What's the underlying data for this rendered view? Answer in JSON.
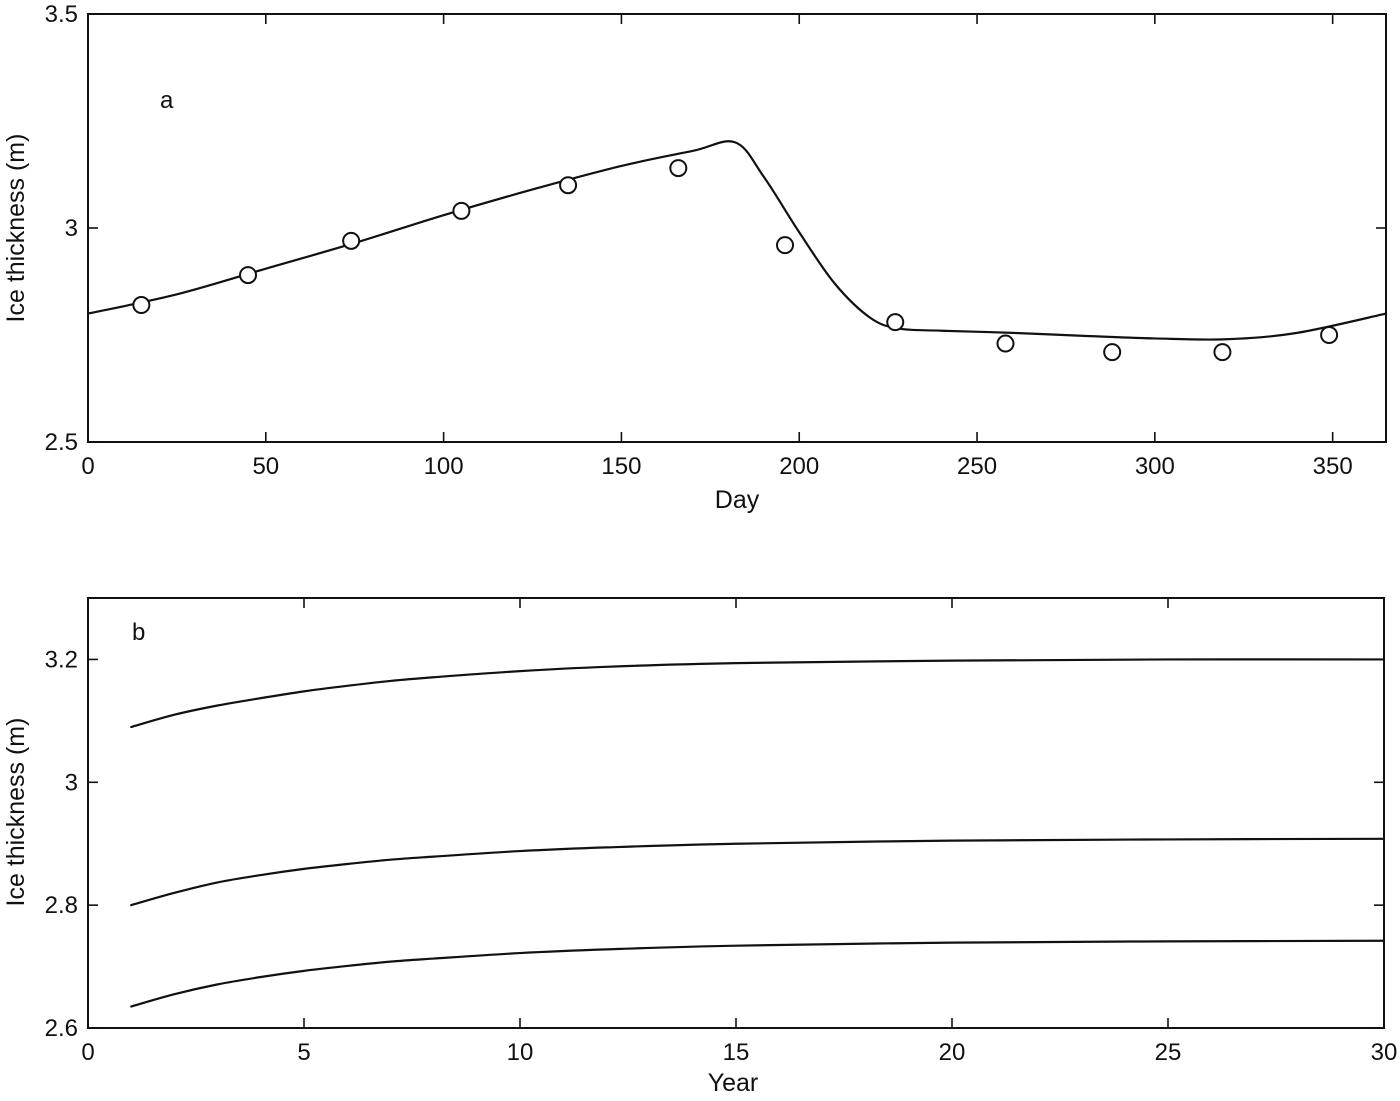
{
  "chart_data": [
    {
      "panel": "a",
      "type": "line",
      "xlabel": "Day",
      "ylabel": "Ice thickness (m)",
      "xlim": [
        0,
        365
      ],
      "ylim": [
        2.5,
        3.5
      ],
      "xticks": [
        0,
        50,
        100,
        150,
        200,
        250,
        300,
        350
      ],
      "yticks": [
        2.5,
        3,
        3.5
      ],
      "xtick_labels": [
        "0",
        "50",
        "100",
        "150",
        "200",
        "250",
        "300",
        "350"
      ],
      "ytick_labels": [
        "2.5",
        "3",
        "3.5"
      ],
      "series": [
        {
          "style": "solid-line",
          "x": [
            0,
            25,
            50,
            75,
            100,
            125,
            150,
            170,
            182,
            190,
            200,
            210,
            220,
            228,
            240,
            260,
            280,
            300,
            320,
            340,
            365
          ],
          "y": [
            2.8,
            2.845,
            2.905,
            2.965,
            3.03,
            3.09,
            3.145,
            3.18,
            3.2,
            3.12,
            2.99,
            2.87,
            2.79,
            2.765,
            2.76,
            2.755,
            2.748,
            2.742,
            2.74,
            2.755,
            2.8
          ]
        },
        {
          "style": "open-circles",
          "x": [
            15,
            45,
            74,
            105,
            135,
            166,
            196,
            227,
            258,
            288,
            319,
            349
          ],
          "y": [
            2.82,
            2.89,
            2.97,
            3.04,
            3.1,
            3.14,
            2.96,
            2.78,
            2.73,
            2.71,
            2.71,
            2.75
          ]
        }
      ]
    },
    {
      "panel": "b",
      "type": "line",
      "xlabel": "Year",
      "ylabel": "Ice thickness (m)",
      "xlim": [
        0,
        30
      ],
      "ylim": [
        2.6,
        3.3
      ],
      "xticks": [
        0,
        5,
        10,
        15,
        20,
        25,
        30
      ],
      "yticks": [
        2.6,
        2.8,
        3.0,
        3.2
      ],
      "xtick_labels": [
        "0",
        "5",
        "10",
        "15",
        "20",
        "25",
        "30"
      ],
      "ytick_labels": [
        "2.6",
        "2.8",
        "3",
        "3.2"
      ],
      "series": [
        {
          "style": "solid-line",
          "x": [
            1,
            2,
            3,
            4,
            5,
            6,
            7,
            8,
            10,
            12,
            15,
            20,
            25,
            30
          ],
          "y": [
            3.09,
            3.11,
            3.125,
            3.137,
            3.148,
            3.157,
            3.165,
            3.171,
            3.181,
            3.188,
            3.194,
            3.198,
            3.2,
            3.2
          ]
        },
        {
          "style": "solid-line",
          "x": [
            1,
            2,
            3,
            4,
            5,
            6,
            7,
            8,
            10,
            12,
            15,
            20,
            25,
            30
          ],
          "y": [
            2.8,
            2.82,
            2.837,
            2.849,
            2.859,
            2.867,
            2.874,
            2.879,
            2.888,
            2.894,
            2.9,
            2.905,
            2.907,
            2.908
          ]
        },
        {
          "style": "solid-line",
          "x": [
            1,
            2,
            3,
            4,
            5,
            6,
            7,
            8,
            10,
            12,
            15,
            20,
            25,
            30
          ],
          "y": [
            2.635,
            2.655,
            2.671,
            2.683,
            2.693,
            2.701,
            2.708,
            2.713,
            2.722,
            2.728,
            2.734,
            2.739,
            2.741,
            2.742
          ]
        }
      ]
    }
  ]
}
